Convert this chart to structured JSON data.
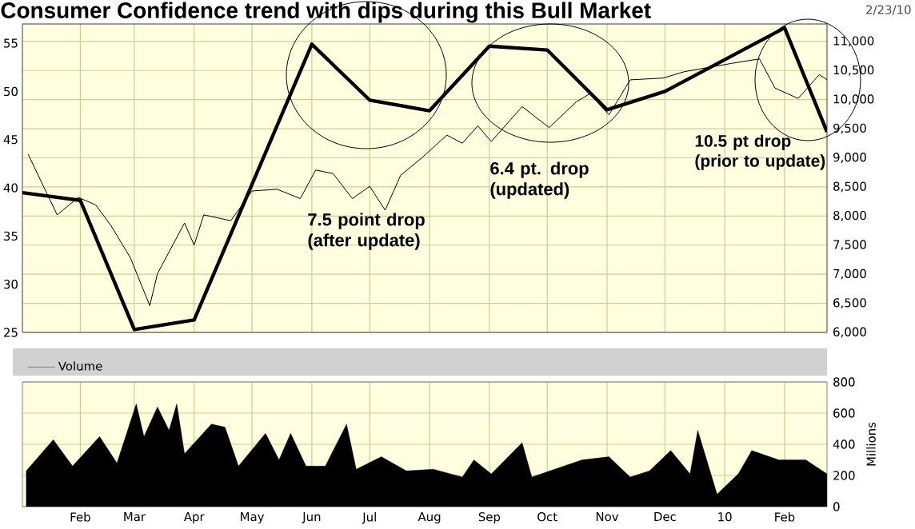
{
  "chart_data": [
    {
      "type": "line",
      "title": "Consumer Confidence trend with dips during this Bull Market",
      "tick_labels": "y",
      "grid": true,
      "annotations": [
        "7.5 point drop (after update)",
        "6.4 pt. drop (updated)",
        "10.5 pt drop (prior to update)",
        "2/23/10"
      ],
      "xlim": [
        "2009-01-02",
        "2010-02-23"
      ],
      "xticks": [
        {
          "value": "2009-02-01",
          "label": null
        },
        {
          "value": "2009-03-01",
          "label": null
        },
        {
          "value": "2009-04-01",
          "label": null
        },
        {
          "value": "2009-05-01",
          "label": null
        },
        {
          "value": "2009-06-01",
          "label": null
        },
        {
          "value": "2009-07-01",
          "label": null
        },
        {
          "value": "2009-08-01",
          "label": null
        },
        {
          "value": "2009-09-01",
          "label": null
        },
        {
          "value": "2009-10-01",
          "label": null
        },
        {
          "value": "2009-11-01",
          "label": null
        },
        {
          "value": "2009-12-01",
          "label": null
        },
        {
          "value": "2010-01-01",
          "label": null
        },
        {
          "value": "2010-02-01",
          "label": null
        }
      ],
      "ylim": [
        25,
        57
      ],
      "yticks": [
        25,
        30,
        35,
        40,
        45,
        50,
        55
      ],
      "y2lim": [
        6000,
        11300
      ],
      "y2ticks": [
        {
          "value": 6000,
          "label": "6,000"
        },
        {
          "value": 6500,
          "label": "6,500"
        },
        {
          "value": 7000,
          "label": "7,000"
        },
        {
          "value": 7500,
          "label": "7,500"
        },
        {
          "value": 8000,
          "label": "8,000"
        },
        {
          "value": 8500,
          "label": "8,500"
        },
        {
          "value": 9000,
          "label": "9,000"
        },
        {
          "value": 9500,
          "label": "9,500"
        },
        {
          "value": 10000,
          "label": "10,000"
        },
        {
          "value": 10500,
          "label": "10,500"
        },
        {
          "value": 11000,
          "label": "11,000"
        }
      ],
      "series": [
        {
          "type": "line",
          "color": "#000000",
          "x": [
            "2009-01-02",
            "2009-02-01",
            "2009-03-01",
            "2009-04-01",
            "2009-06-01",
            "2009-07-01",
            "2009-08-01",
            "2009-09-01",
            "2009-10-01",
            "2009-11-01",
            "2009-12-01",
            "2010-02-01",
            "2010-02-23"
          ],
          "values": [
            39.5,
            38.7,
            25.3,
            26.3,
            54.9,
            49.1,
            48.0,
            54.7,
            54.3,
            48.1,
            50.0,
            56.6,
            45.8
          ]
        },
        {
          "type": "line",
          "axis": "y2",
          "color": "#000000",
          "x": [
            "2009-01-05",
            "2009-01-20",
            "2009-01-31",
            "2009-02-09",
            "2009-02-17",
            "2009-02-27",
            "2009-03-09",
            "2009-03-13",
            "2009-03-27",
            "2009-04-01",
            "2009-04-06",
            "2009-04-20",
            "2009-05-01",
            "2009-05-14",
            "2009-05-26",
            "2009-06-03",
            "2009-06-12",
            "2009-06-22",
            "2009-07-01",
            "2009-07-09",
            "2009-07-17",
            "2009-07-28",
            "2009-08-10",
            "2009-08-18",
            "2009-08-26",
            "2009-09-02",
            "2009-09-18",
            "2009-10-02",
            "2009-10-16",
            "2009-10-23",
            "2009-11-02",
            "2009-11-13",
            "2009-11-30",
            "2009-12-11",
            "2010-01-04",
            "2010-01-19",
            "2010-01-27",
            "2010-02-08",
            "2010-02-19",
            "2010-02-23"
          ],
          "values": [
            9060,
            8020,
            8320,
            8190,
            7830,
            7280,
            6460,
            7010,
            7880,
            7500,
            8020,
            7920,
            8430,
            8460,
            8300,
            8790,
            8730,
            8300,
            8510,
            8100,
            8700,
            9000,
            9390,
            9250,
            9550,
            9280,
            9880,
            9520,
            9960,
            10100,
            9740,
            10340,
            10370,
            10480,
            10620,
            10700,
            10200,
            10020,
            10430,
            10340
          ]
        }
      ]
    },
    {
      "type": "area",
      "ylabel": "Millions",
      "legend": "top left",
      "grid": true,
      "xlim": [
        "2009-01-02",
        "2010-02-23"
      ],
      "xticks": [
        {
          "value": "2009-02-01",
          "label": "Feb"
        },
        {
          "value": "2009-03-01",
          "label": "Mar"
        },
        {
          "value": "2009-04-01",
          "label": "Apr"
        },
        {
          "value": "2009-05-01",
          "label": "May"
        },
        {
          "value": "2009-06-01",
          "label": "Jun"
        },
        {
          "value": "2009-07-01",
          "label": "Jul"
        },
        {
          "value": "2009-08-01",
          "label": "Aug"
        },
        {
          "value": "2009-09-01",
          "label": "Sep"
        },
        {
          "value": "2009-10-01",
          "label": "Oct"
        },
        {
          "value": "2009-11-01",
          "label": "Nov"
        },
        {
          "value": "2009-12-01",
          "label": "Dec"
        },
        {
          "value": "2010-01-01",
          "label": "10"
        },
        {
          "value": "2010-02-01",
          "label": "Feb"
        }
      ],
      "ylim": [
        0,
        800
      ],
      "yticks": [
        0,
        200,
        400,
        600,
        800
      ],
      "series": [
        {
          "name": "Volume",
          "color": "#000000",
          "x": [
            "2009-01-04",
            "2009-01-18",
            "2009-01-28",
            "2009-02-11",
            "2009-02-20",
            "2009-03-02",
            "2009-03-06",
            "2009-03-13",
            "2009-03-19",
            "2009-03-23",
            "2009-03-27",
            "2009-04-10",
            "2009-04-17",
            "2009-04-24",
            "2009-05-08",
            "2009-05-15",
            "2009-05-21",
            "2009-05-29",
            "2009-06-08",
            "2009-06-19",
            "2009-06-24",
            "2009-07-07",
            "2009-07-20",
            "2009-08-03",
            "2009-08-18",
            "2009-08-24",
            "2009-09-02",
            "2009-09-18",
            "2009-09-23",
            "2009-10-19",
            "2009-11-02",
            "2009-11-13",
            "2009-11-23",
            "2009-12-04",
            "2009-12-14",
            "2009-12-18",
            "2009-12-28",
            "2010-01-08",
            "2010-01-15",
            "2010-01-29",
            "2010-02-12",
            "2010-02-23"
          ],
          "values": [
            230,
            430,
            260,
            450,
            280,
            660,
            450,
            640,
            490,
            660,
            340,
            530,
            510,
            260,
            470,
            300,
            470,
            260,
            260,
            530,
            240,
            320,
            230,
            240,
            190,
            300,
            210,
            410,
            190,
            300,
            320,
            190,
            230,
            360,
            210,
            490,
            80,
            210,
            360,
            300,
            300,
            210
          ]
        }
      ]
    }
  ]
}
